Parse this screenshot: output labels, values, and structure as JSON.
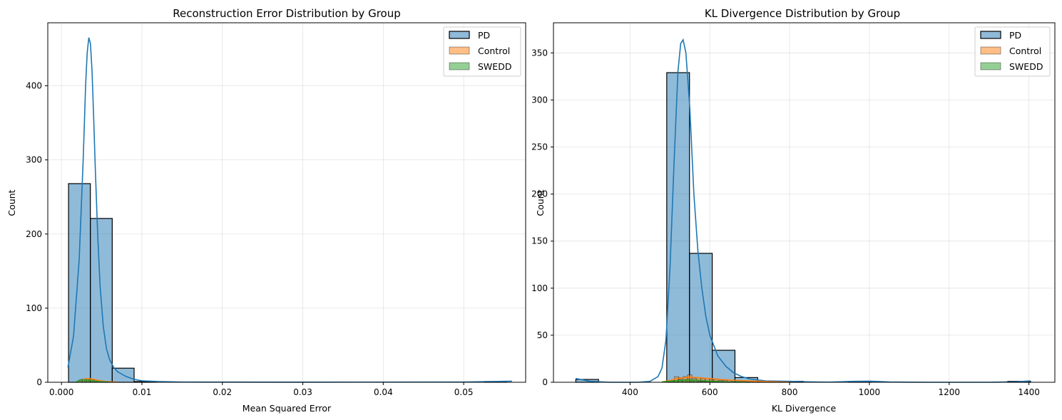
{
  "chart_data": [
    {
      "type": "histogram",
      "title": "Reconstruction Error Distribution by Group",
      "xlabel": "Mean Squared Error",
      "ylabel": "Count",
      "xlim": [
        -0.0017,
        0.0577
      ],
      "ylim": [
        0,
        485
      ],
      "xticks": [
        0.0,
        0.01,
        0.02,
        0.03,
        0.04,
        0.05
      ],
      "xtick_labels": [
        "0.000",
        "0.01",
        "0.02",
        "0.03",
        "0.04",
        "0.05"
      ],
      "yticks": [
        0,
        100,
        200,
        300,
        400
      ],
      "ytick_labels": [
        "0",
        "100",
        "200",
        "300",
        "400"
      ],
      "grid": true,
      "legend_position": "upper-right",
      "series": [
        {
          "name": "PD",
          "color": "#1f77b4",
          "bins": [
            {
              "x0": 0.00088,
              "x1": 0.00359,
              "count": 268
            },
            {
              "x0": 0.00359,
              "x1": 0.00631,
              "count": 221
            },
            {
              "x0": 0.00631,
              "x1": 0.00903,
              "count": 19
            },
            {
              "x0": 0.00903,
              "x1": 0.01175,
              "count": 1
            },
            {
              "x0": 0.05256,
              "x1": 0.05528,
              "count": 1
            }
          ],
          "kde": [
            [
              0.0008,
              20
            ],
            [
              0.0015,
              62
            ],
            [
              0.0022,
              165
            ],
            [
              0.0027,
              300
            ],
            [
              0.003,
              400
            ],
            [
              0.0032,
              445
            ],
            [
              0.0034,
              465
            ],
            [
              0.0036,
              457
            ],
            [
              0.0038,
              420
            ],
            [
              0.004,
              358
            ],
            [
              0.0042,
              290
            ],
            [
              0.0045,
              200
            ],
            [
              0.0048,
              130
            ],
            [
              0.0052,
              75
            ],
            [
              0.0056,
              45
            ],
            [
              0.006,
              30
            ],
            [
              0.0065,
              20
            ],
            [
              0.007,
              14
            ],
            [
              0.008,
              8
            ],
            [
              0.009,
              4
            ],
            [
              0.01,
              2
            ],
            [
              0.012,
              1
            ],
            [
              0.015,
              0.3
            ],
            [
              0.03,
              0.2
            ],
            [
              0.05,
              0.3
            ],
            [
              0.056,
              1.5
            ]
          ]
        },
        {
          "name": "Control",
          "color": "#ff7f0e",
          "bins": [
            {
              "x0": 0.0024,
              "x1": 0.0029,
              "count": 4
            },
            {
              "x0": 0.0029,
              "x1": 0.0034,
              "count": 5
            },
            {
              "x0": 0.0034,
              "x1": 0.0039,
              "count": 4
            },
            {
              "x0": 0.0039,
              "x1": 0.0044,
              "count": 3
            },
            {
              "x0": 0.0044,
              "x1": 0.0049,
              "count": 2
            },
            {
              "x0": 0.0049,
              "x1": 0.0054,
              "count": 1
            },
            {
              "x0": 0.0054,
              "x1": 0.006,
              "count": 1
            }
          ],
          "kde": [
            [
              0.002,
              0.3
            ],
            [
              0.0026,
              3
            ],
            [
              0.003,
              5
            ],
            [
              0.0035,
              5
            ],
            [
              0.004,
              4
            ],
            [
              0.0046,
              2.5
            ],
            [
              0.0055,
              1
            ],
            [
              0.007,
              0.2
            ]
          ]
        },
        {
          "name": "SWEDD",
          "color": "#2ca02c",
          "bins": [
            {
              "x0": 0.0021,
              "x1": 0.0026,
              "count": 3
            },
            {
              "x0": 0.0026,
              "x1": 0.0031,
              "count": 4
            },
            {
              "x0": 0.0031,
              "x1": 0.0036,
              "count": 3
            },
            {
              "x0": 0.0036,
              "x1": 0.0041,
              "count": 2
            },
            {
              "x0": 0.0041,
              "x1": 0.0046,
              "count": 1
            }
          ],
          "kde": [
            [
              0.0018,
              0.3
            ],
            [
              0.0024,
              2.5
            ],
            [
              0.003,
              3.5
            ],
            [
              0.0036,
              2.5
            ],
            [
              0.0045,
              1
            ],
            [
              0.006,
              0.2
            ]
          ]
        }
      ]
    },
    {
      "type": "histogram",
      "title": "KL Divergence Distribution by Group",
      "xlabel": "KL Divergence",
      "ylabel": "Count",
      "xlim": [
        208,
        1465
      ],
      "ylim": [
        0,
        382
      ],
      "xticks": [
        400,
        600,
        800,
        1000,
        1200,
        1400
      ],
      "xtick_labels": [
        "400",
        "600",
        "800",
        "1000",
        "1200",
        "1400"
      ],
      "yticks": [
        0,
        50,
        100,
        150,
        200,
        250,
        300,
        350
      ],
      "ytick_labels": [
        "0",
        "50",
        "100",
        "150",
        "200",
        "250",
        "300",
        "350"
      ],
      "grid": true,
      "legend_position": "upper-right",
      "series": [
        {
          "name": "PD",
          "color": "#1f77b4",
          "bins": [
            {
              "x0": 264,
              "x1": 321,
              "count": 3
            },
            {
              "x0": 492,
              "x1": 549,
              "count": 329
            },
            {
              "x0": 549,
              "x1": 606,
              "count": 137
            },
            {
              "x0": 606,
              "x1": 663,
              "count": 34
            },
            {
              "x0": 663,
              "x1": 720,
              "count": 5
            },
            {
              "x0": 720,
              "x1": 777,
              "count": 1
            },
            {
              "x0": 777,
              "x1": 834,
              "count": 1
            },
            {
              "x0": 948,
              "x1": 1005,
              "count": 1
            },
            {
              "x0": 1347,
              "x1": 1404,
              "count": 1
            }
          ],
          "kde": [
            [
              264,
              4
            ],
            [
              300,
              1
            ],
            [
              350,
              0
            ],
            [
              420,
              0
            ],
            [
              450,
              1
            ],
            [
              470,
              6
            ],
            [
              480,
              15
            ],
            [
              490,
              45
            ],
            [
              500,
              120
            ],
            [
              510,
              230
            ],
            [
              520,
              330
            ],
            [
              527,
              360
            ],
            [
              533,
              364
            ],
            [
              540,
              350
            ],
            [
              550,
              290
            ],
            [
              560,
              200
            ],
            [
              570,
              140
            ],
            [
              580,
              100
            ],
            [
              590,
              70
            ],
            [
              600,
              50
            ],
            [
              620,
              28
            ],
            [
              640,
              17
            ],
            [
              660,
              10
            ],
            [
              680,
              6
            ],
            [
              700,
              3.5
            ],
            [
              740,
              1.5
            ],
            [
              800,
              1
            ],
            [
              850,
              0.4
            ],
            [
              900,
              0.2
            ],
            [
              960,
              1
            ],
            [
              1000,
              1.2
            ],
            [
              1050,
              0.3
            ],
            [
              1150,
              0
            ],
            [
              1300,
              0
            ],
            [
              1370,
              0.5
            ],
            [
              1404,
              1.5
            ]
          ]
        },
        {
          "name": "Control",
          "color": "#ff7f0e",
          "bins": [
            {
              "x0": 500,
              "x1": 511,
              "count": 2
            },
            {
              "x0": 511,
              "x1": 522,
              "count": 6
            },
            {
              "x0": 522,
              "x1": 533,
              "count": 5
            },
            {
              "x0": 533,
              "x1": 544,
              "count": 6
            },
            {
              "x0": 544,
              "x1": 555,
              "count": 8
            },
            {
              "x0": 555,
              "x1": 566,
              "count": 4
            },
            {
              "x0": 566,
              "x1": 577,
              "count": 5
            },
            {
              "x0": 577,
              "x1": 588,
              "count": 4
            },
            {
              "x0": 588,
              "x1": 599,
              "count": 4
            },
            {
              "x0": 599,
              "x1": 610,
              "count": 3
            },
            {
              "x0": 610,
              "x1": 621,
              "count": 3
            },
            {
              "x0": 621,
              "x1": 632,
              "count": 2
            },
            {
              "x0": 632,
              "x1": 643,
              "count": 2
            },
            {
              "x0": 643,
              "x1": 654,
              "count": 2
            },
            {
              "x0": 654,
              "x1": 665,
              "count": 1
            },
            {
              "x0": 665,
              "x1": 676,
              "count": 1
            },
            {
              "x0": 676,
              "x1": 687,
              "count": 1
            },
            {
              "x0": 687,
              "x1": 698,
              "count": 1
            },
            {
              "x0": 698,
              "x1": 709,
              "count": 1
            },
            {
              "x0": 709,
              "x1": 720,
              "count": 1
            }
          ],
          "kde": [
            [
              480,
              0.3
            ],
            [
              500,
              2
            ],
            [
              520,
              4
            ],
            [
              545,
              5.5
            ],
            [
              570,
              5
            ],
            [
              600,
              4
            ],
            [
              630,
              3
            ],
            [
              660,
              2
            ],
            [
              700,
              1.5
            ],
            [
              740,
              0.8
            ],
            [
              800,
              0.2
            ]
          ]
        },
        {
          "name": "SWEDD",
          "color": "#2ca02c",
          "bins": [
            {
              "x0": 500,
              "x1": 510,
              "count": 1
            },
            {
              "x0": 510,
              "x1": 520,
              "count": 2
            },
            {
              "x0": 520,
              "x1": 530,
              "count": 3
            },
            {
              "x0": 530,
              "x1": 540,
              "count": 2
            },
            {
              "x0": 540,
              "x1": 550,
              "count": 3
            },
            {
              "x0": 550,
              "x1": 560,
              "count": 2
            },
            {
              "x0": 560,
              "x1": 570,
              "count": 2
            },
            {
              "x0": 570,
              "x1": 580,
              "count": 1
            },
            {
              "x0": 580,
              "x1": 590,
              "count": 1
            },
            {
              "x0": 590,
              "x1": 600,
              "count": 1
            }
          ],
          "kde": [
            [
              480,
              0.3
            ],
            [
              510,
              1.5
            ],
            [
              540,
              2.5
            ],
            [
              570,
              2
            ],
            [
              600,
              1.2
            ],
            [
              640,
              0.5
            ],
            [
              700,
              0.1
            ]
          ]
        }
      ]
    }
  ]
}
